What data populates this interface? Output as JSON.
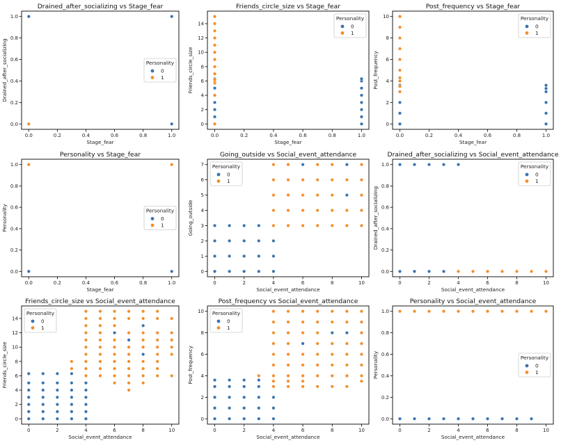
{
  "colors": {
    "class_0": "#3a73ad",
    "class_1": "#f28e2b"
  },
  "legend_title": "Personality",
  "legend_labels": [
    "0",
    "1"
  ],
  "chart_data": [
    {
      "type": "scatter",
      "title": "Drained_after_socializing vs Stage_fear",
      "xlabel": "Stage_fear",
      "ylabel": "Drained_after_socializing",
      "xlim": [
        -0.05,
        1.05
      ],
      "ylim": [
        -0.05,
        1.05
      ],
      "xticks": [
        0.0,
        0.2,
        0.4,
        0.6,
        0.8,
        1.0
      ],
      "xticklabels": [
        "0.0",
        "0.2",
        "0.4",
        "0.6",
        "0.8",
        "1.0"
      ],
      "yticks": [
        0.0,
        0.2,
        0.4,
        0.6,
        0.8,
        1.0
      ],
      "yticklabels": [
        "0.0",
        "0.2",
        "0.4",
        "0.6",
        "0.8",
        "1.0"
      ],
      "legend": "center-right",
      "series": [
        {
          "name": "0",
          "x": [
            0,
            1,
            1
          ],
          "y": [
            1,
            1,
            0
          ]
        },
        {
          "name": "1",
          "x": [
            0
          ],
          "y": [
            0
          ]
        }
      ]
    },
    {
      "type": "scatter",
      "title": "Friends_circle_size vs Stage_fear",
      "xlabel": "Stage_fear",
      "ylabel": "Friends_circle_size",
      "xlim": [
        -0.05,
        1.05
      ],
      "ylim": [
        -0.75,
        15.75
      ],
      "xticks": [
        0.0,
        0.2,
        0.4,
        0.6,
        0.8,
        1.0
      ],
      "xticklabels": [
        "0.0",
        "0.2",
        "0.4",
        "0.6",
        "0.8",
        "1.0"
      ],
      "yticks": [
        0,
        2,
        4,
        6,
        8,
        10,
        12,
        14
      ],
      "yticklabels": [
        "0",
        "2",
        "4",
        "6",
        "8",
        "10",
        "12",
        "14"
      ],
      "legend": "top-right",
      "series": [
        {
          "name": "0",
          "x": [
            0,
            0,
            0,
            0,
            0,
            0,
            0,
            0,
            1,
            1,
            1,
            1,
            1,
            1,
            1,
            1
          ],
          "y": [
            1,
            2,
            3,
            4,
            5,
            10,
            11,
            6.3,
            0,
            1,
            2,
            3,
            4,
            5,
            6,
            6.3
          ]
        },
        {
          "name": "1",
          "x": [
            0,
            0,
            0,
            0,
            0,
            0,
            0,
            0,
            0,
            0,
            0,
            0,
            0,
            0
          ],
          "y": [
            0,
            5.7,
            6,
            7,
            8,
            9,
            10,
            11,
            12,
            13,
            14,
            15,
            6.2,
            4
          ]
        }
      ]
    },
    {
      "type": "scatter",
      "title": "Post_frequency vs Stage_fear",
      "xlabel": "Stage_fear",
      "ylabel": "Post_frequency",
      "xlim": [
        -0.05,
        1.05
      ],
      "ylim": [
        -0.5,
        10.5
      ],
      "xticks": [
        0.0,
        0.2,
        0.4,
        0.6,
        0.8,
        1.0
      ],
      "xticklabels": [
        "0.0",
        "0.2",
        "0.4",
        "0.6",
        "0.8",
        "1.0"
      ],
      "yticks": [
        0,
        2,
        4,
        6,
        8,
        10
      ],
      "yticklabels": [
        "0",
        "2",
        "4",
        "6",
        "8",
        "10"
      ],
      "legend": "top-right",
      "series": [
        {
          "name": "0",
          "x": [
            0,
            0,
            0,
            0,
            1,
            1,
            1,
            1,
            1,
            1
          ],
          "y": [
            0,
            1,
            2,
            3.6,
            0,
            1,
            2,
            3,
            3.3,
            3.6
          ]
        },
        {
          "name": "1",
          "x": [
            0,
            0,
            0,
            0,
            0,
            0,
            0,
            0,
            0,
            0
          ],
          "y": [
            3,
            3.5,
            4,
            5,
            6,
            7,
            8,
            9,
            10,
            4.3
          ]
        }
      ]
    },
    {
      "type": "scatter",
      "title": "Personality vs Stage_fear",
      "xlabel": "Stage_fear",
      "ylabel": "Personality",
      "xlim": [
        -0.05,
        1.05
      ],
      "ylim": [
        -0.05,
        1.05
      ],
      "xticks": [
        0.0,
        0.2,
        0.4,
        0.6,
        0.8,
        1.0
      ],
      "xticklabels": [
        "0.0",
        "0.2",
        "0.4",
        "0.6",
        "0.8",
        "1.0"
      ],
      "yticks": [
        0.0,
        0.2,
        0.4,
        0.6,
        0.8,
        1.0
      ],
      "yticklabels": [
        "0.0",
        "0.2",
        "0.4",
        "0.6",
        "0.8",
        "1.0"
      ],
      "legend": "center-right",
      "series": [
        {
          "name": "0",
          "x": [
            0,
            1
          ],
          "y": [
            0,
            0
          ]
        },
        {
          "name": "1",
          "x": [
            0,
            1
          ],
          "y": [
            1,
            1
          ]
        }
      ]
    },
    {
      "type": "scatter",
      "title": "Going_outside vs Social_event_attendance",
      "xlabel": "Social_event_attendance",
      "ylabel": "Going_outside",
      "xlim": [
        -0.5,
        10.5
      ],
      "ylim": [
        -0.35,
        7.35
      ],
      "xticks": [
        0,
        2,
        4,
        6,
        8,
        10
      ],
      "xticklabels": [
        "0",
        "2",
        "4",
        "6",
        "8",
        "10"
      ],
      "yticks": [
        0,
        1,
        2,
        3,
        4,
        5,
        6,
        7
      ],
      "yticklabels": [
        "0",
        "1",
        "2",
        "3",
        "4",
        "5",
        "6",
        "7"
      ],
      "legend": "top-left",
      "series": [
        {
          "name": "0",
          "x": [
            0,
            1,
            2,
            3,
            4,
            0,
            1,
            2,
            3,
            4,
            0,
            1,
            2,
            3,
            4,
            0,
            1,
            2,
            3,
            6,
            7,
            8,
            9,
            9
          ],
          "y": [
            0,
            0,
            0,
            0,
            0,
            1,
            1,
            1,
            1,
            1,
            2,
            2,
            2,
            2,
            2,
            3,
            3,
            3,
            3,
            7,
            7,
            7,
            7,
            5
          ]
        },
        {
          "name": "1",
          "x": [
            4,
            5,
            6,
            7,
            8,
            9,
            10,
            4,
            5,
            6,
            7,
            8,
            9,
            10,
            4,
            5,
            6,
            7,
            8,
            10,
            4,
            5,
            6,
            7,
            8,
            9,
            10,
            5,
            6,
            7,
            8,
            9,
            4,
            5,
            10
          ],
          "y": [
            3,
            3,
            3,
            3,
            3,
            3,
            3,
            4,
            4,
            4,
            4,
            4,
            4,
            4,
            5,
            5,
            5,
            5,
            5,
            5,
            6,
            6,
            6,
            6,
            6,
            6,
            6,
            7,
            6,
            7,
            7,
            3,
            7,
            7,
            7
          ]
        }
      ]
    },
    {
      "type": "scatter",
      "title": "Drained_after_socializing vs Social_event_attendance",
      "xlabel": "Social_event_attendance",
      "ylabel": "Drained_after_socializing",
      "xlim": [
        -0.5,
        10.5
      ],
      "ylim": [
        -0.05,
        1.05
      ],
      "xticks": [
        0,
        2,
        4,
        6,
        8,
        10
      ],
      "xticklabels": [
        "0",
        "2",
        "4",
        "6",
        "8",
        "10"
      ],
      "yticks": [
        0.0,
        0.2,
        0.4,
        0.6,
        0.8,
        1.0
      ],
      "yticklabels": [
        "0.0",
        "0.2",
        "0.4",
        "0.6",
        "0.8",
        "1.0"
      ],
      "legend": "top-right",
      "series": [
        {
          "name": "0",
          "x": [
            0,
            1,
            2,
            3,
            4,
            0,
            1,
            2,
            3,
            4
          ],
          "y": [
            1,
            1,
            1,
            1,
            1,
            0,
            0,
            0,
            0,
            0
          ]
        },
        {
          "name": "1",
          "x": [
            4,
            5,
            6,
            7,
            8,
            9,
            10
          ],
          "y": [
            0,
            0,
            0,
            0,
            0,
            0,
            0
          ]
        }
      ]
    },
    {
      "type": "scatter",
      "title": "Friends_circle_size vs Social_event_attendance",
      "xlabel": "Social_event_attendance",
      "ylabel": "Friends_circle_size",
      "xlim": [
        -0.5,
        10.5
      ],
      "ylim": [
        -0.75,
        15.75
      ],
      "xticks": [
        0,
        2,
        4,
        6,
        8,
        10
      ],
      "xticklabels": [
        "0",
        "2",
        "4",
        "6",
        "8",
        "10"
      ],
      "yticks": [
        0,
        2,
        4,
        6,
        8,
        10,
        12,
        14
      ],
      "yticklabels": [
        "0",
        "2",
        "4",
        "6",
        "8",
        "10",
        "12",
        "14"
      ],
      "legend": "top-left",
      "series": [
        {
          "name": "0",
          "x": [
            0,
            0,
            0,
            0,
            0,
            0,
            0,
            1,
            1,
            1,
            1,
            1,
            1,
            1,
            2,
            2,
            2,
            2,
            2,
            2,
            2,
            3,
            3,
            3,
            3,
            3,
            3,
            3,
            4,
            4,
            4,
            4,
            4,
            4,
            4,
            6,
            7,
            8,
            8,
            9
          ],
          "y": [
            0,
            1,
            2,
            3,
            4,
            5,
            6.3,
            0,
            1,
            2,
            3,
            4,
            5,
            6.3,
            0,
            1,
            2,
            3,
            4,
            5,
            6.3,
            0,
            1,
            2,
            3,
            4,
            5,
            6.3,
            0,
            1,
            2,
            3,
            4,
            5,
            6,
            12,
            11,
            13,
            9,
            8
          ]
        },
        {
          "name": "1",
          "x": [
            3,
            3,
            4,
            4,
            4,
            4,
            4,
            4,
            4,
            4,
            4,
            4,
            5,
            5,
            5,
            5,
            5,
            5,
            5,
            5,
            5,
            5,
            6,
            6,
            6,
            6,
            6,
            6,
            6,
            6,
            6,
            6,
            7,
            7,
            7,
            7,
            7,
            7,
            7,
            7,
            7,
            7,
            8,
            8,
            8,
            8,
            8,
            8,
            8,
            8,
            8,
            9,
            9,
            9,
            9,
            9,
            9,
            9,
            9,
            9,
            10,
            10,
            10,
            10,
            10,
            10
          ],
          "y": [
            7,
            8,
            6,
            7,
            8,
            9,
            10,
            11,
            12,
            13,
            14,
            15,
            6,
            7,
            8,
            9,
            10,
            11,
            12,
            13,
            14,
            15,
            5,
            6,
            7,
            8,
            9,
            10,
            11,
            13,
            14,
            15,
            4,
            5,
            6,
            7,
            8,
            9,
            10,
            12,
            14,
            15,
            6,
            7,
            8,
            10,
            11,
            12,
            14,
            15,
            5,
            6,
            7,
            8,
            9,
            10,
            11,
            12,
            14,
            15,
            6,
            9,
            10,
            11,
            12,
            14
          ]
        }
      ]
    },
    {
      "type": "scatter",
      "title": "Post_frequency vs Social_event_attendance",
      "xlabel": "Social_event_attendance",
      "ylabel": "Post_frequency",
      "xlim": [
        -0.5,
        10.5
      ],
      "ylim": [
        -0.5,
        10.5
      ],
      "xticks": [
        0,
        2,
        4,
        6,
        8,
        10
      ],
      "xticklabels": [
        "0",
        "2",
        "4",
        "6",
        "8",
        "10"
      ],
      "yticks": [
        0,
        2,
        4,
        6,
        8,
        10
      ],
      "yticklabels": [
        "0",
        "2",
        "4",
        "6",
        "8",
        "10"
      ],
      "legend": "top-left",
      "series": [
        {
          "name": "0",
          "x": [
            0,
            0,
            0,
            0,
            0,
            1,
            1,
            1,
            1,
            1,
            2,
            2,
            2,
            2,
            2,
            3,
            3,
            3,
            3,
            3,
            4,
            4,
            4,
            4,
            6,
            8,
            9
          ],
          "y": [
            0,
            1,
            2,
            3,
            3.6,
            0,
            1,
            2,
            3,
            3.6,
            0,
            1,
            2,
            3,
            3.6,
            0,
            1,
            2,
            3,
            3.6,
            0,
            1,
            2,
            3,
            7,
            8,
            8
          ]
        },
        {
          "name": "1",
          "x": [
            3,
            4,
            4,
            4,
            4,
            4,
            4,
            4,
            4,
            4,
            5,
            5,
            5,
            5,
            5,
            5,
            5,
            5,
            5,
            6,
            6,
            6,
            6,
            6,
            6,
            6,
            6,
            7,
            7,
            7,
            7,
            7,
            7,
            7,
            7,
            8,
            8,
            8,
            8,
            8,
            8,
            8,
            9,
            9,
            9,
            9,
            9,
            9,
            9,
            10,
            10,
            10,
            10,
            10,
            10,
            10,
            10
          ],
          "y": [
            4,
            3,
            3.5,
            4,
            5,
            6,
            7,
            8,
            9,
            10,
            3,
            3.5,
            4,
            5,
            6,
            7,
            8,
            9,
            10,
            3,
            3.5,
            4,
            5,
            6,
            8,
            9,
            10,
            3,
            4,
            5,
            6,
            7,
            8,
            9,
            10,
            3,
            4,
            5,
            6,
            7,
            9,
            10,
            3,
            4,
            5,
            6,
            7,
            9,
            10,
            4,
            5,
            6,
            7,
            8,
            9,
            10,
            3.5
          ]
        }
      ]
    },
    {
      "type": "scatter",
      "title": "Personality vs Social_event_attendance",
      "xlabel": "Social_event_attendance",
      "ylabel": "Personality",
      "xlim": [
        -0.5,
        10.5
      ],
      "ylim": [
        -0.05,
        1.05
      ],
      "xticks": [
        0,
        2,
        4,
        6,
        8,
        10
      ],
      "xticklabels": [
        "0",
        "2",
        "4",
        "6",
        "8",
        "10"
      ],
      "yticks": [
        0.0,
        0.2,
        0.4,
        0.6,
        0.8,
        1.0
      ],
      "yticklabels": [
        "0.0",
        "0.2",
        "0.4",
        "0.6",
        "0.8",
        "1.0"
      ],
      "legend": "center-right",
      "series": [
        {
          "name": "0",
          "x": [
            0,
            1,
            2,
            3,
            4,
            5,
            6,
            7,
            8,
            9
          ],
          "y": [
            0,
            0,
            0,
            0,
            0,
            0,
            0,
            0,
            0,
            0
          ]
        },
        {
          "name": "1",
          "x": [
            0,
            1,
            2,
            3,
            4,
            5,
            6,
            7,
            8,
            9,
            10
          ],
          "y": [
            1,
            1,
            1,
            1,
            1,
            1,
            1,
            1,
            1,
            1,
            1
          ]
        }
      ]
    }
  ]
}
